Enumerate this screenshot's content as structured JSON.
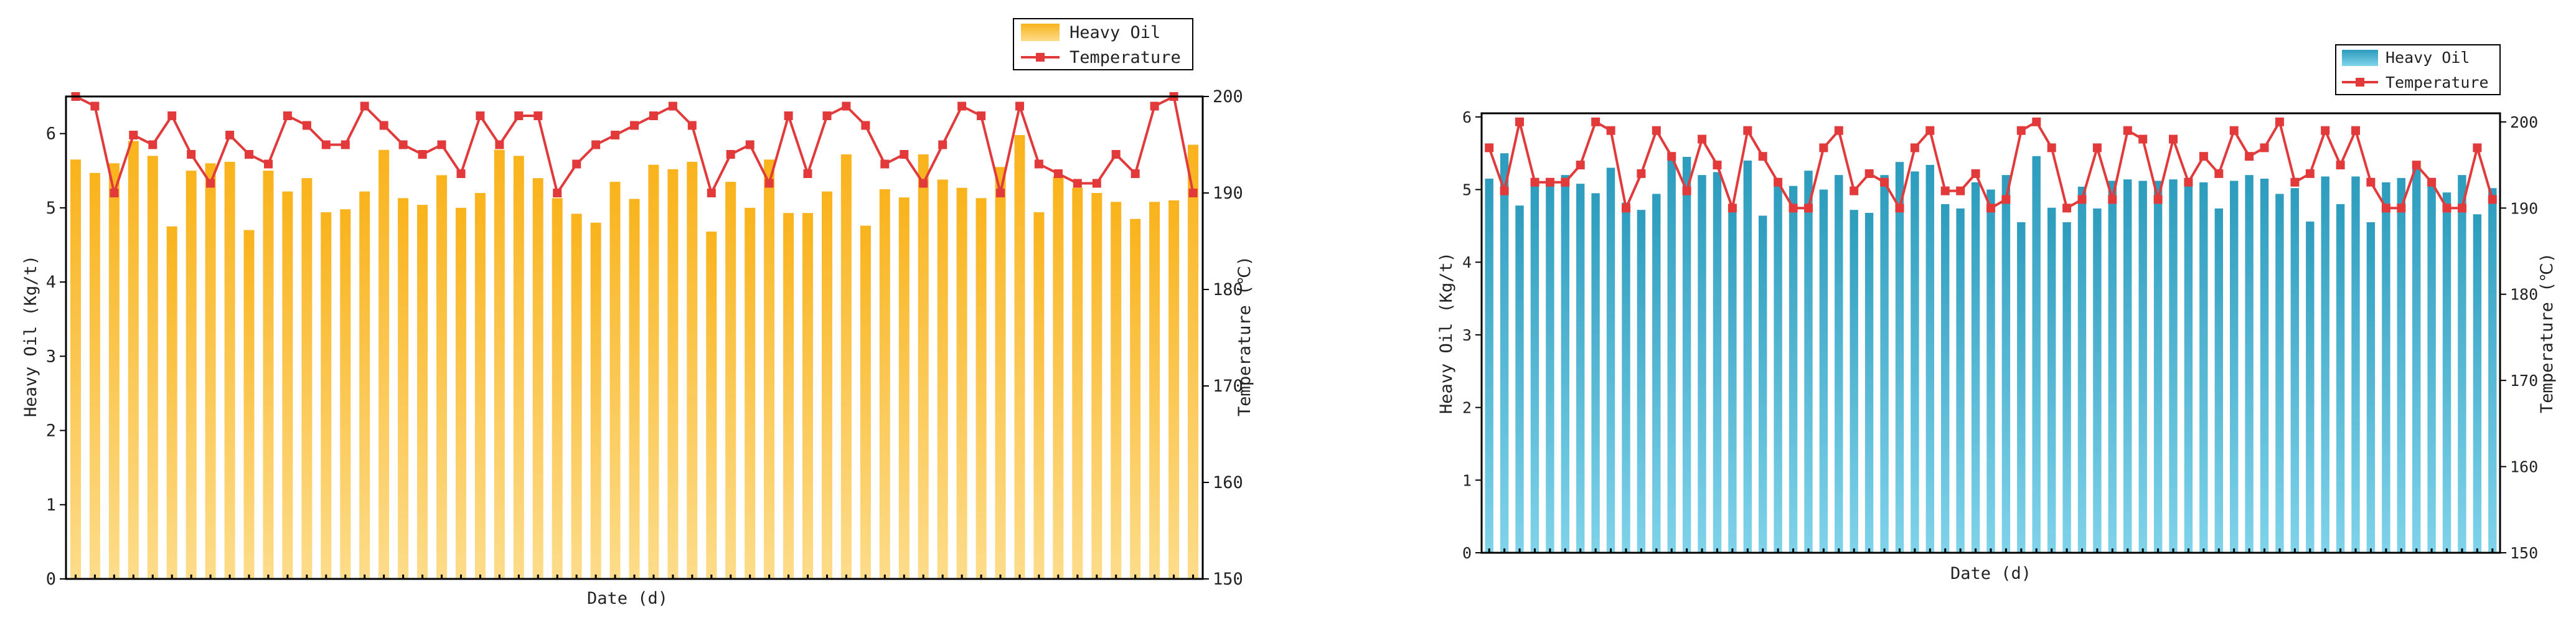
{
  "charts": [
    {
      "xlabel": "Date (d)",
      "ylabel_left": "Heavy Oil (Kg/t)",
      "ylabel_right": "Temperature (℃)",
      "legend": {
        "bar_label": "Heavy Oil",
        "line_label": "Temperature"
      },
      "left_ticks": [
        "0",
        "1",
        "2",
        "3",
        "4",
        "5",
        "6"
      ],
      "right_ticks": [
        "150",
        "160",
        "170",
        "180",
        "190",
        "200"
      ]
    },
    {
      "xlabel": "Date (d)",
      "ylabel_left": "Heavy Oil (Kg/t)",
      "ylabel_right": "Temperature (℃)",
      "legend": {
        "bar_label": "Heavy Oil",
        "line_label": "Temperature"
      },
      "left_ticks": [
        "0",
        "1",
        "2",
        "3",
        "4",
        "5",
        "6"
      ],
      "right_ticks": [
        "150",
        "160",
        "170",
        "180",
        "190",
        "200"
      ]
    }
  ],
  "chart_data": [
    {
      "type": "bar",
      "xlabel": "Date (d)",
      "ylabel": "Heavy Oil (Kg/t)",
      "ylabel_right": "Temperature (℃)",
      "ylim": [
        0,
        6.5
      ],
      "ylim_right": [
        150,
        200
      ],
      "grid": false,
      "legend_position": "top-right",
      "colors": {
        "bar": "#f9b31c",
        "bar_light": "#fddc8a",
        "line": "#e23a3a"
      },
      "series": [
        {
          "name": "Heavy Oil",
          "type": "bar",
          "values": [
            5.65,
            5.47,
            5.6,
            5.9,
            5.7,
            4.75,
            5.5,
            5.6,
            5.62,
            4.7,
            5.5,
            5.22,
            5.4,
            4.94,
            4.98,
            5.22,
            5.78,
            5.13,
            5.04,
            5.44,
            5.0,
            5.2,
            5.78,
            5.7,
            5.4,
            5.13,
            4.92,
            4.8,
            5.35,
            5.12,
            5.58,
            5.52,
            5.62,
            4.68,
            5.35,
            5.0,
            5.65,
            4.93,
            4.93,
            5.22,
            5.72,
            4.76,
            5.25,
            5.14,
            5.72,
            5.38,
            5.27,
            5.13,
            5.55,
            5.98,
            4.94,
            5.42,
            5.27,
            5.2,
            5.08,
            4.85,
            5.08,
            5.1,
            5.85
          ]
        },
        {
          "name": "Temperature",
          "type": "line",
          "values": [
            200,
            199,
            190,
            196,
            195,
            198,
            194,
            191,
            196,
            194,
            193,
            198,
            197,
            195,
            195,
            199,
            197,
            195,
            194,
            195,
            192,
            198,
            195,
            198,
            198,
            190,
            193,
            195,
            196,
            197,
            198,
            199,
            197,
            190,
            194,
            195,
            191,
            198,
            192,
            198,
            199,
            197,
            193,
            194,
            191,
            195,
            199,
            198,
            190,
            199,
            193,
            192,
            191,
            191,
            194,
            192,
            199,
            200,
            190
          ]
        }
      ]
    },
    {
      "type": "bar",
      "xlabel": "Date (d)",
      "ylabel": "Heavy Oil (Kg/t)",
      "ylabel_right": "Temperature (℃)",
      "ylim": [
        0,
        6.05
      ],
      "ylim_right": [
        150,
        201
      ],
      "grid": false,
      "legend_position": "top-right",
      "colors": {
        "bar": "#2d9cbd",
        "bar_light": "#7fd3ea",
        "line": "#e23a3a"
      },
      "series": [
        {
          "name": "Heavy Oil",
          "type": "bar",
          "values": [
            5.15,
            5.5,
            4.78,
            5.08,
            5.1,
            5.2,
            5.08,
            4.95,
            5.3,
            4.82,
            4.72,
            4.94,
            5.45,
            5.45,
            5.2,
            5.24,
            4.75,
            5.4,
            4.64,
            5.1,
            5.05,
            5.26,
            5.0,
            5.2,
            4.72,
            4.68,
            5.2,
            5.38,
            5.25,
            5.34,
            4.8,
            4.74,
            5.1,
            5.0,
            5.2,
            4.55,
            5.46,
            4.75,
            4.55,
            5.04,
            4.74,
            5.12,
            5.14,
            5.12,
            5.12,
            5.14,
            5.1,
            5.1,
            4.74,
            5.12,
            5.2,
            5.15,
            4.94,
            5.02,
            4.56,
            5.18,
            4.8,
            5.18,
            4.55,
            5.1,
            5.16,
            5.38,
            5.06,
            4.96,
            5.2,
            4.66,
            5.02
          ]
        },
        {
          "name": "Temperature",
          "type": "line",
          "values": [
            197,
            192,
            200,
            193,
            193,
            193,
            195,
            200,
            199,
            190,
            194,
            199,
            196,
            192,
            198,
            195,
            190,
            199,
            196,
            193,
            190,
            190,
            197,
            199,
            192,
            194,
            193,
            190,
            197,
            199,
            192,
            192,
            194,
            190,
            191,
            199,
            200,
            197,
            190,
            191,
            197,
            191,
            199,
            198,
            191,
            198,
            193,
            196,
            194,
            199,
            196,
            197,
            200,
            193,
            194,
            199,
            195,
            199,
            193,
            190,
            190,
            195,
            193,
            190,
            190,
            197,
            191
          ]
        }
      ]
    }
  ]
}
